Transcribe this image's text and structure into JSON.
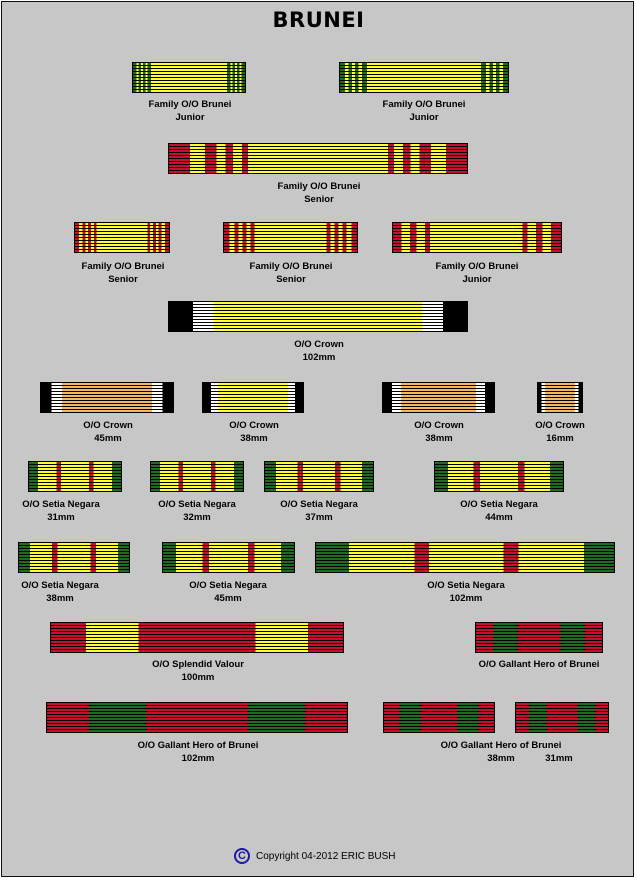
{
  "title": "BRUNEI",
  "colors": {
    "yellow": "#ffff33",
    "stripe_dark": "#000000",
    "green": "#1f6b1f",
    "red": "#c8102e",
    "orange": "#f4b860",
    "white": "#ffffff",
    "black": "#000000"
  },
  "ribbons": [
    {
      "id": "r1",
      "label_lines": [
        "Family O/O Brunei",
        "Junior"
      ],
      "pattern": "family-junior"
    },
    {
      "id": "r2",
      "label_lines": [
        "Family O/O Brunei",
        "Junior"
      ],
      "pattern": "family-junior"
    },
    {
      "id": "r3",
      "label_lines": [
        "Family O/O Brunei",
        "Senior"
      ],
      "pattern": "family-senior-wide"
    },
    {
      "id": "r4",
      "label_lines": [
        "Family O/O Brunei",
        "Senior"
      ],
      "pattern": "family-senior"
    },
    {
      "id": "r5",
      "label_lines": [
        "Family O/O Brunei",
        "Senior"
      ],
      "pattern": "family-senior"
    },
    {
      "id": "r6",
      "label_lines": [
        "Family O/O Brunei",
        "Junior"
      ],
      "pattern": "family-junior-red"
    },
    {
      "id": "r7",
      "label_lines": [
        "O/O Crown",
        "102mm"
      ],
      "pattern": "crown-yellow"
    },
    {
      "id": "r8",
      "label_lines": [
        "O/O Crown",
        "45mm"
      ],
      "pattern": "crown-orange"
    },
    {
      "id": "r9",
      "label_lines": [
        "O/O Crown",
        "38mm"
      ],
      "pattern": "crown-yellow"
    },
    {
      "id": "r10",
      "label_lines": [
        "O/O Crown",
        "38mm"
      ],
      "pattern": "crown-orange"
    },
    {
      "id": "r11",
      "label_lines": [
        "O/O Crown",
        "16mm"
      ],
      "pattern": "crown-orange"
    },
    {
      "id": "r12",
      "label_lines": [
        "O/O Setia Negara",
        "31mm"
      ],
      "pattern": "setia"
    },
    {
      "id": "r13",
      "label_lines": [
        "O/O Setia Negara",
        "32mm"
      ],
      "pattern": "setia"
    },
    {
      "id": "r14",
      "label_lines": [
        "O/O Setia Negara",
        "37mm"
      ],
      "pattern": "setia"
    },
    {
      "id": "r15",
      "label_lines": [
        "O/O Setia Negara",
        "44mm"
      ],
      "pattern": "setia"
    },
    {
      "id": "r16",
      "label_lines": [
        "O/O Setia Negara",
        "38mm"
      ],
      "pattern": "setia"
    },
    {
      "id": "r17",
      "label_lines": [
        "O/O Setia Negara",
        "45mm"
      ],
      "pattern": "setia"
    },
    {
      "id": "r18",
      "label_lines": [
        "O/O Setia Negara",
        "102mm"
      ],
      "pattern": "setia-wide"
    },
    {
      "id": "r19",
      "label_lines": [
        "O/O Splendid Valour",
        "100mm"
      ],
      "pattern": "valour"
    },
    {
      "id": "r20",
      "label_lines": [
        "O/O Gallant Hero of Brunei"
      ],
      "pattern": "gallant"
    },
    {
      "id": "r21",
      "label_lines": [
        "O/O Gallant Hero of Brunei",
        "102mm"
      ],
      "pattern": "gallant"
    },
    {
      "id": "r22",
      "label_lines": [
        "O/O Gallant Hero of Brunei",
        "38mm"
      ],
      "pattern": "gallant"
    },
    {
      "id": "r23",
      "label_lines": [
        "31mm"
      ],
      "pattern": "gallant"
    }
  ],
  "copyright": {
    "symbol": "C",
    "text": "Copyright 04-2012 ERIC BUSH"
  }
}
